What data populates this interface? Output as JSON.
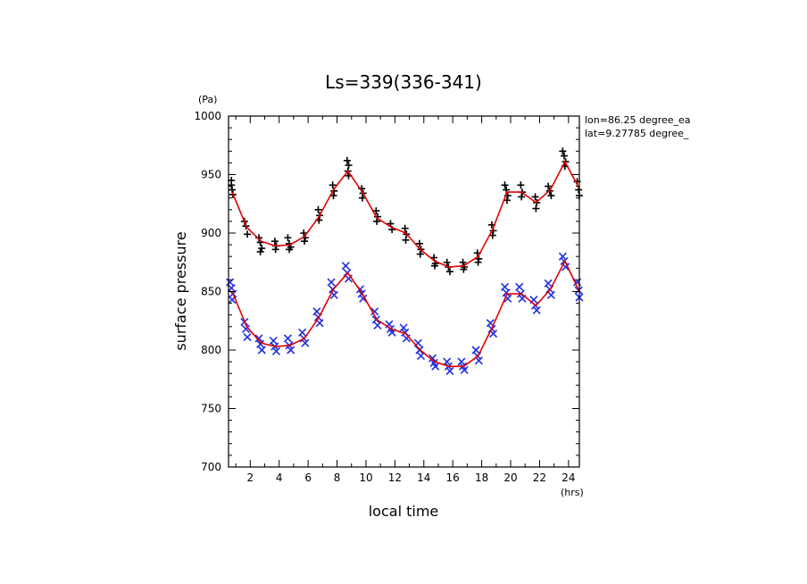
{
  "chart_data": {
    "type": "scatter",
    "title": "Ls=339(336-341)",
    "xlabel": "local time",
    "ylabel": "surface pressure",
    "x_unit": "(hrs)",
    "y_unit": "(Pa)",
    "xlim": [
      0.5,
      24.75
    ],
    "ylim": [
      700,
      1000
    ],
    "x_ticks": [
      2,
      4,
      6,
      8,
      10,
      12,
      14,
      16,
      18,
      20,
      22,
      24
    ],
    "y_ticks": [
      700,
      750,
      800,
      850,
      900,
      950,
      1000
    ],
    "annotations": [
      "lon=86.25 degree_ea",
      "lat=9.27785 degree_"
    ],
    "colors": {
      "plus_markers": "#000000",
      "x_markers": "#1f2fe0",
      "fit_line": "#e00000",
      "axes": "#000000"
    },
    "series": [
      {
        "marker": "plus",
        "line_x": [
          0.75,
          1.75,
          2.75,
          3.75,
          4.75,
          5.75,
          6.75,
          7.75,
          8.75,
          9.75,
          10.75,
          11.75,
          12.75,
          13.75,
          14.75,
          15.75,
          16.75,
          17.75,
          18.75,
          19.75,
          20.75,
          21.75,
          22.75,
          23.75,
          24.75
        ],
        "line_y": [
          935,
          905,
          893,
          889,
          890,
          897,
          914,
          937,
          953,
          935,
          913,
          905,
          900,
          886,
          876,
          871,
          872,
          880,
          903,
          935,
          935,
          926,
          937,
          961,
          938
        ],
        "points": [
          [
            0.7,
            945
          ],
          [
            0.7,
            941
          ],
          [
            0.75,
            937
          ],
          [
            0.8,
            933
          ],
          [
            1.6,
            910
          ],
          [
            1.7,
            906
          ],
          [
            1.8,
            899
          ],
          [
            2.6,
            896
          ],
          [
            2.7,
            892
          ],
          [
            2.8,
            887
          ],
          [
            2.7,
            884
          ],
          [
            3.7,
            893
          ],
          [
            3.8,
            889
          ],
          [
            3.75,
            886
          ],
          [
            4.6,
            896
          ],
          [
            4.7,
            891
          ],
          [
            4.8,
            888
          ],
          [
            4.7,
            886
          ],
          [
            5.7,
            900
          ],
          [
            5.8,
            896
          ],
          [
            5.75,
            893
          ],
          [
            6.7,
            920
          ],
          [
            6.8,
            915
          ],
          [
            6.75,
            911
          ],
          [
            7.7,
            941
          ],
          [
            7.8,
            936
          ],
          [
            7.75,
            932
          ],
          [
            8.7,
            962
          ],
          [
            8.8,
            958
          ],
          [
            8.75,
            953
          ],
          [
            8.8,
            949
          ],
          [
            9.7,
            938
          ],
          [
            9.8,
            934
          ],
          [
            9.75,
            930
          ],
          [
            10.7,
            919
          ],
          [
            10.8,
            914
          ],
          [
            10.75,
            910
          ],
          [
            11.7,
            908
          ],
          [
            11.8,
            903
          ],
          [
            12.7,
            904
          ],
          [
            12.8,
            899
          ],
          [
            12.75,
            894
          ],
          [
            13.7,
            891
          ],
          [
            13.8,
            886
          ],
          [
            13.75,
            882
          ],
          [
            14.7,
            879
          ],
          [
            14.8,
            874
          ],
          [
            14.75,
            872
          ],
          [
            15.6,
            875
          ],
          [
            15.7,
            871
          ],
          [
            15.8,
            867
          ],
          [
            16.7,
            875
          ],
          [
            16.8,
            871
          ],
          [
            16.75,
            869
          ],
          [
            17.7,
            883
          ],
          [
            17.8,
            878
          ],
          [
            17.75,
            875
          ],
          [
            18.7,
            907
          ],
          [
            18.8,
            902
          ],
          [
            18.75,
            898
          ],
          [
            19.6,
            941
          ],
          [
            19.7,
            937
          ],
          [
            19.8,
            932
          ],
          [
            19.75,
            928
          ],
          [
            20.7,
            941
          ],
          [
            20.8,
            935
          ],
          [
            20.75,
            931
          ],
          [
            21.7,
            931
          ],
          [
            21.8,
            926
          ],
          [
            21.75,
            921
          ],
          [
            22.6,
            940
          ],
          [
            22.7,
            936
          ],
          [
            22.8,
            932
          ],
          [
            23.6,
            970
          ],
          [
            23.7,
            966
          ],
          [
            23.8,
            961
          ],
          [
            23.75,
            957
          ],
          [
            24.6,
            944
          ],
          [
            24.7,
            937
          ],
          [
            24.75,
            932
          ]
        ]
      },
      {
        "marker": "x",
        "line_x": [
          0.75,
          1.75,
          2.75,
          3.75,
          4.75,
          5.75,
          6.75,
          7.75,
          8.75,
          9.75,
          10.75,
          11.75,
          12.75,
          13.75,
          14.75,
          15.75,
          16.75,
          17.75,
          18.75,
          19.75,
          20.75,
          21.75,
          22.75,
          23.75,
          24.75
        ],
        "line_y": [
          850,
          820,
          806,
          803,
          804,
          810,
          828,
          852,
          866,
          848,
          826,
          818,
          814,
          800,
          790,
          786,
          786,
          795,
          820,
          848,
          848,
          838,
          852,
          876,
          850
        ],
        "points": [
          [
            0.6,
            858
          ],
          [
            0.7,
            853
          ],
          [
            0.8,
            848
          ],
          [
            0.75,
            843
          ],
          [
            1.6,
            824
          ],
          [
            1.7,
            818
          ],
          [
            1.8,
            811
          ],
          [
            2.6,
            810
          ],
          [
            2.7,
            805
          ],
          [
            2.8,
            800
          ],
          [
            3.6,
            808
          ],
          [
            3.7,
            803
          ],
          [
            3.8,
            799
          ],
          [
            4.6,
            810
          ],
          [
            4.7,
            804
          ],
          [
            4.8,
            800
          ],
          [
            5.6,
            815
          ],
          [
            5.7,
            810
          ],
          [
            5.8,
            806
          ],
          [
            6.6,
            833
          ],
          [
            6.7,
            828
          ],
          [
            6.8,
            823
          ],
          [
            7.6,
            858
          ],
          [
            7.7,
            852
          ],
          [
            7.8,
            847
          ],
          [
            8.6,
            872
          ],
          [
            8.7,
            866
          ],
          [
            8.8,
            861
          ],
          [
            9.6,
            852
          ],
          [
            9.7,
            848
          ],
          [
            9.8,
            844
          ],
          [
            10.6,
            833
          ],
          [
            10.7,
            826
          ],
          [
            10.8,
            821
          ],
          [
            11.6,
            822
          ],
          [
            11.7,
            818
          ],
          [
            11.8,
            815
          ],
          [
            12.6,
            819
          ],
          [
            12.7,
            815
          ],
          [
            12.8,
            810
          ],
          [
            13.6,
            806
          ],
          [
            13.7,
            800
          ],
          [
            13.8,
            795
          ],
          [
            14.6,
            793
          ],
          [
            14.7,
            789
          ],
          [
            14.8,
            786
          ],
          [
            15.6,
            790
          ],
          [
            15.7,
            786
          ],
          [
            15.8,
            782
          ],
          [
            16.6,
            790
          ],
          [
            16.7,
            786
          ],
          [
            16.8,
            783
          ],
          [
            17.6,
            800
          ],
          [
            17.7,
            795
          ],
          [
            17.8,
            791
          ],
          [
            18.6,
            823
          ],
          [
            18.7,
            818
          ],
          [
            18.8,
            814
          ],
          [
            19.6,
            854
          ],
          [
            19.7,
            849
          ],
          [
            19.8,
            844
          ],
          [
            20.6,
            854
          ],
          [
            20.7,
            848
          ],
          [
            20.8,
            844
          ],
          [
            21.6,
            843
          ],
          [
            21.7,
            838
          ],
          [
            21.8,
            834
          ],
          [
            22.6,
            857
          ],
          [
            22.7,
            852
          ],
          [
            22.8,
            847
          ],
          [
            23.6,
            880
          ],
          [
            23.7,
            876
          ],
          [
            23.8,
            871
          ],
          [
            24.6,
            858
          ],
          [
            24.7,
            851
          ],
          [
            24.75,
            845
          ]
        ]
      }
    ]
  }
}
